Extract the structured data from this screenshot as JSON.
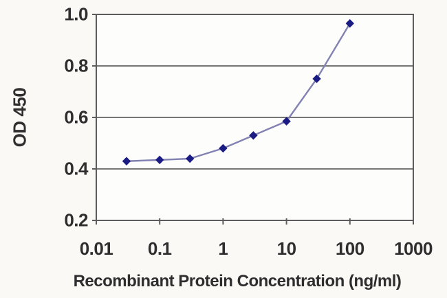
{
  "figure": {
    "background_color": "#faf9f6",
    "plot_background_color": "#fdfdfc"
  },
  "chart_data": {
    "type": "line",
    "title": "",
    "xlabel": "Recombinant Protein Concentration (ng/ml)",
    "ylabel": "OD 450",
    "x_scale": "log",
    "series": [
      {
        "name": "OD 450",
        "x": [
          0.03,
          0.1,
          0.3,
          1,
          3,
          10,
          30,
          100
        ],
        "y": [
          0.43,
          0.435,
          0.44,
          0.48,
          0.53,
          0.585,
          0.75,
          0.965
        ]
      }
    ],
    "xlim": [
      0.01,
      1000
    ],
    "ylim": [
      0.2,
      1.0
    ],
    "x_tick_labels": [
      "0.01",
      "0.1",
      "1",
      "10",
      "100",
      "1000"
    ],
    "x_tick_values": [
      0.01,
      0.1,
      1,
      10,
      100,
      1000
    ],
    "y_tick_labels": [
      "0.2",
      "0.4",
      "0.6",
      "0.8",
      "1.0"
    ],
    "y_tick_values": [
      0.2,
      0.4,
      0.6,
      0.8,
      1.0
    ],
    "gridlines": "horizontal",
    "legend": "none",
    "marker": "diamond",
    "line_color": "#8282b2",
    "marker_color": "#1b1b84",
    "grid_color": "#757575",
    "frame_color": "#5c5c5c",
    "text_color": "#2e2e2e"
  }
}
